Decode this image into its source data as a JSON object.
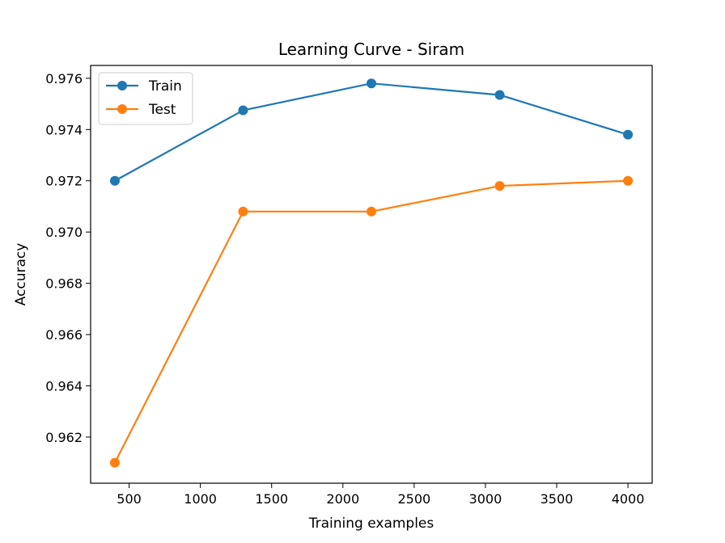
{
  "chart_data": {
    "type": "line",
    "title": "Learning Curve - Siram",
    "xlabel": "Training examples",
    "ylabel": "Accuracy",
    "xlim": [
      230,
      4170
    ],
    "ylim": [
      0.9602,
      0.9765
    ],
    "x_ticks": [
      500,
      1000,
      1500,
      2000,
      2500,
      3000,
      3500,
      4000
    ],
    "x_tick_labels": [
      "500",
      "1000",
      "1500",
      "2000",
      "2500",
      "3000",
      "3500",
      "4000"
    ],
    "y_ticks": [
      0.962,
      0.964,
      0.966,
      0.968,
      0.97,
      0.972,
      0.974,
      0.976
    ],
    "y_tick_labels": [
      "0.962",
      "0.964",
      "0.966",
      "0.968",
      "0.970",
      "0.972",
      "0.974",
      "0.976"
    ],
    "grid": false,
    "legend_position": "upper-left",
    "x": [
      400,
      1300,
      2200,
      3100,
      4000
    ],
    "series": [
      {
        "name": "Train",
        "color": "#1f77b4",
        "values": [
          0.972,
          0.97475,
          0.9758,
          0.97535,
          0.9738
        ]
      },
      {
        "name": "Test",
        "color": "#ff7f0e",
        "values": [
          0.961,
          0.9708,
          0.9708,
          0.9718,
          0.972
        ]
      }
    ]
  }
}
